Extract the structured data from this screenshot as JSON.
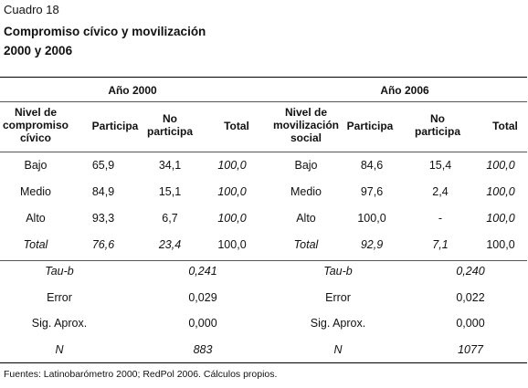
{
  "caption": "Cuadro 18",
  "title": [
    "Compromiso cívico y movilización",
    "2000 y 2006"
  ],
  "groups": [
    {
      "year": "Año 2000",
      "headers": [
        "Nivel de compromiso cívico",
        "Participa",
        "No participa",
        "Total"
      ],
      "rows": [
        [
          "Bajo",
          "65,9",
          "34,1",
          "100,0"
        ],
        [
          "Medio",
          "84,9",
          "15,1",
          "100,0"
        ],
        [
          "Alto",
          "93,3",
          "6,7",
          "100,0"
        ],
        [
          "Total",
          "76,6",
          "23,4",
          "100,0"
        ]
      ],
      "stats": [
        [
          "Tau-b",
          "0,241"
        ],
        [
          "Error",
          "0,029"
        ],
        [
          "Sig. Aprox.",
          "0,000"
        ],
        [
          "N",
          "883"
        ]
      ]
    },
    {
      "year": "Año 2006",
      "headers": [
        "Nivel de movilización social",
        "Participa",
        "No participa",
        "Total"
      ],
      "rows": [
        [
          "Bajo",
          "84,6",
          "15,4",
          "100,0"
        ],
        [
          "Medio",
          "97,6",
          "2,4",
          "100,0"
        ],
        [
          "Alto",
          "100,0",
          "-",
          "100,0"
        ],
        [
          "Total",
          "92,9",
          "7,1",
          "100,0"
        ]
      ],
      "stats": [
        [
          "Tau-b",
          "0,240"
        ],
        [
          "Error",
          "0,022"
        ],
        [
          "Sig. Aprox.",
          "0,000"
        ],
        [
          "N",
          "1077"
        ]
      ]
    }
  ],
  "source": "Fuentes: Latinobarómetro 2000; RedPol 2006. Cálculos propios."
}
